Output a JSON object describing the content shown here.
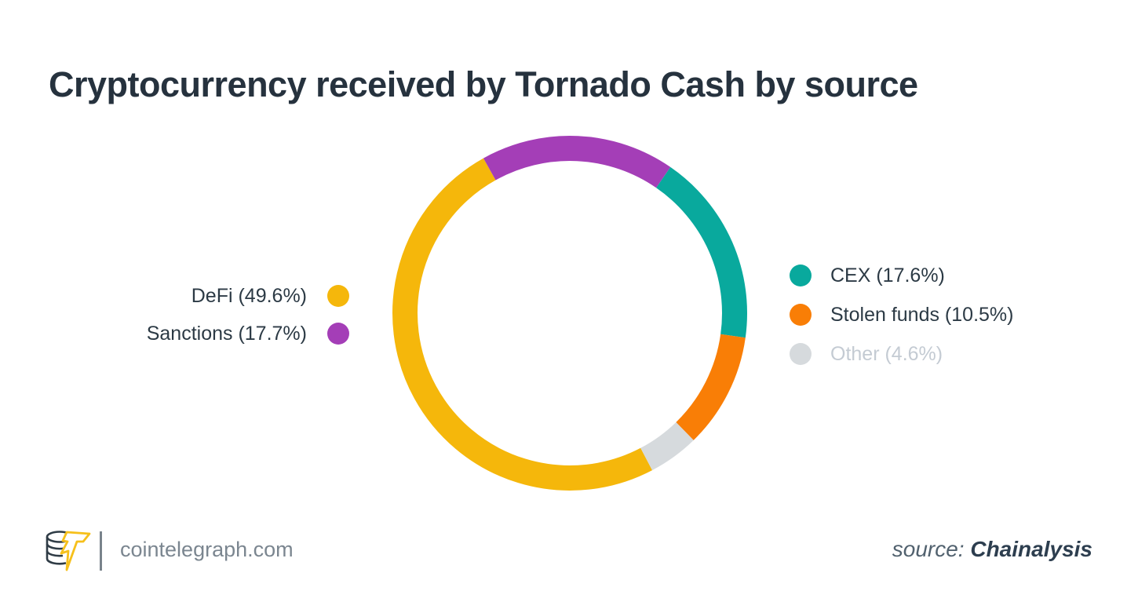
{
  "title": "Cryptocurrency received by Tornado Cash by source",
  "chart_data": {
    "type": "pie",
    "variant": "donut",
    "title": "Cryptocurrency received by Tornado Cash by source",
    "segments": [
      {
        "label": "DeFi",
        "value": 49.6,
        "color": "#F5B70B"
      },
      {
        "label": "Sanctions",
        "value": 17.7,
        "color": "#A43EB7"
      },
      {
        "label": "CEX",
        "value": 17.6,
        "color": "#09A99D"
      },
      {
        "label": "Stolen funds",
        "value": 10.5,
        "color": "#F97E06"
      },
      {
        "label": "Other",
        "value": 4.6,
        "color": "#D6DADD"
      }
    ],
    "start_angle_deg": 152.3,
    "direction": "clockwise",
    "ring_mid_radius_px": 210,
    "ring_thickness_px": 32,
    "donut_hole": true,
    "legend_position": "left-and-right"
  },
  "legend": {
    "left": [
      {
        "label": "DeFi (49.6%)",
        "color": "#F5B70B",
        "text_color": "#2C3A45"
      },
      {
        "label": "Sanctions (17.7%)",
        "color": "#A43EB7",
        "text_color": "#2C3A45"
      }
    ],
    "right": [
      {
        "label": "CEX (17.6%)",
        "color": "#09A99D",
        "text_color": "#2C3A45"
      },
      {
        "label": "Stolen funds (10.5%)",
        "color": "#F97E06",
        "text_color": "#2C3A45"
      },
      {
        "label": "Other (4.6%)",
        "color": "#D6DADD",
        "text_color": "#C4CBD3"
      }
    ]
  },
  "footer": {
    "logo": "cointelegraph-coin-stack-lightning-logo",
    "site_label": "cointelegraph.com",
    "source_prefix": "source:",
    "source_name": "Chainalysis"
  },
  "colors": {
    "background": "#FFFFFF",
    "title_text": "#26323E",
    "legend_text": "#2C3A45",
    "muted_legend_text": "#C4CBD3",
    "footer_text": "#7B8690",
    "logo_outline": "#2F3C46",
    "logo_bolt": "#F6C01B"
  }
}
